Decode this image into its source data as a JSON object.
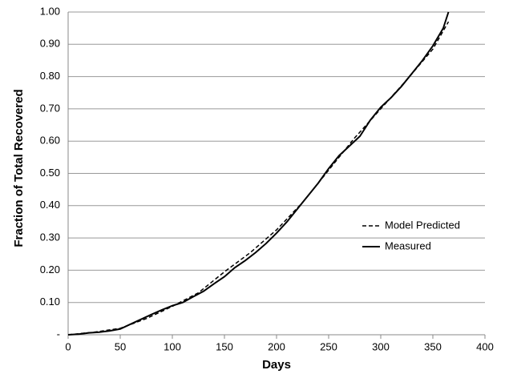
{
  "chart_data": {
    "type": "line",
    "xlabel": "Days",
    "ylabel": "Fraction of Total Recovered",
    "xlim": [
      0,
      400
    ],
    "xticks": [
      0,
      50,
      100,
      150,
      200,
      250,
      300,
      350,
      400
    ],
    "ylim": [
      0,
      1
    ],
    "yticks": [
      {
        "value": 0,
        "label": "-"
      },
      {
        "value": 0.1,
        "label": "0.10"
      },
      {
        "value": 0.2,
        "label": "0.20"
      },
      {
        "value": 0.3,
        "label": "0.30"
      },
      {
        "value": 0.4,
        "label": "0.40"
      },
      {
        "value": 0.5,
        "label": "0.50"
      },
      {
        "value": 0.6,
        "label": "0.60"
      },
      {
        "value": 0.7,
        "label": "0.70"
      },
      {
        "value": 0.8,
        "label": "0.80"
      },
      {
        "value": 0.9,
        "label": "0.90"
      },
      {
        "value": 1,
        "label": "1.00"
      }
    ],
    "grid": true,
    "legend": "right",
    "series": [
      {
        "name": "Model Predicted",
        "color": "#000000",
        "dash": true,
        "x": [
          0,
          25,
          50,
          75,
          100,
          125,
          150,
          175,
          200,
          225,
          250,
          275,
          300,
          325,
          350,
          365
        ],
        "values": [
          0,
          0.008,
          0.02,
          0.05,
          0.088,
          0.13,
          0.195,
          0.255,
          0.325,
          0.41,
          0.51,
          0.61,
          0.7,
          0.79,
          0.885,
          0.97
        ]
      },
      {
        "name": "Measured",
        "color": "#000000",
        "dash": false,
        "x": [
          0,
          10,
          20,
          30,
          40,
          50,
          60,
          70,
          80,
          90,
          100,
          110,
          120,
          130,
          140,
          150,
          160,
          170,
          180,
          190,
          200,
          210,
          220,
          230,
          240,
          250,
          260,
          270,
          280,
          290,
          300,
          310,
          320,
          330,
          340,
          350,
          360,
          365
        ],
        "values": [
          0,
          0.002,
          0.006,
          0.008,
          0.012,
          0.018,
          0.033,
          0.048,
          0.063,
          0.077,
          0.09,
          0.1,
          0.118,
          0.135,
          0.158,
          0.18,
          0.208,
          0.23,
          0.255,
          0.283,
          0.315,
          0.35,
          0.39,
          0.43,
          0.47,
          0.515,
          0.555,
          0.585,
          0.615,
          0.665,
          0.705,
          0.735,
          0.77,
          0.81,
          0.85,
          0.895,
          0.95,
          1.0
        ]
      }
    ]
  }
}
